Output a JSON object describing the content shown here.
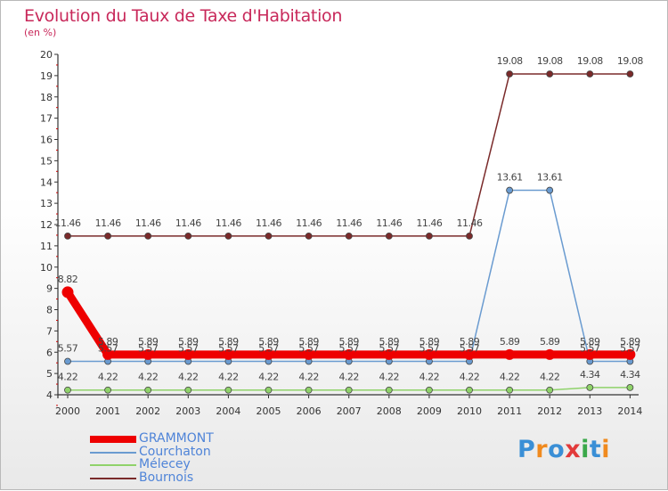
{
  "header": {
    "title": "Evolution du Taux de Taxe d'Habitation",
    "subtitle": "(en %)"
  },
  "logo": {
    "text": "Proxiti",
    "colors": [
      "#3a8fd6",
      "#f08a1e",
      "#3a8fd6",
      "#e23a3a",
      "#3aa84a",
      "#3a8fd6",
      "#f08a1e"
    ]
  },
  "chart_data": {
    "type": "line",
    "title": "Evolution du Taux de Taxe d'Habitation",
    "subtitle": "(en %)",
    "ylim": [
      4,
      20
    ],
    "yticks": [
      "4",
      "5",
      "6",
      "7",
      "8",
      "9",
      "10",
      "11",
      "12",
      "13",
      "14",
      "15",
      "16",
      "17",
      "18",
      "19",
      "20"
    ],
    "categories": [
      "2000",
      "2001",
      "2002",
      "2003",
      "2004",
      "2005",
      "2006",
      "2007",
      "2008",
      "2009",
      "2010",
      "2011",
      "2012",
      "2013",
      "2014"
    ],
    "grid": false,
    "legend_position": "bottom-left",
    "series": [
      {
        "name": "GRAMMONT",
        "color": "#ee0000",
        "values": [
          8.82,
          5.89,
          5.89,
          5.89,
          5.89,
          5.89,
          5.89,
          5.89,
          5.89,
          5.89,
          5.89,
          5.89,
          5.89,
          5.89,
          5.89
        ],
        "labels": [
          "8.82",
          "5.89",
          "5.89",
          "5.89",
          "5.89",
          "5.89",
          "5.89",
          "5.89",
          "5.89",
          "5.89",
          "5.89",
          "5.89",
          "5.89",
          "5.89",
          "5.89"
        ]
      },
      {
        "name": "Courchaton",
        "color": "#6a9bd0",
        "values": [
          5.57,
          5.57,
          5.57,
          5.57,
          5.57,
          5.57,
          5.57,
          5.57,
          5.57,
          5.57,
          5.57,
          13.61,
          13.61,
          5.57,
          5.57
        ],
        "labels": [
          "5.57",
          "5.57",
          "5.57",
          "5.57",
          "5.57",
          "5.57",
          "5.57",
          "5.57",
          "5.57",
          "5.57",
          "5.57",
          "13.61",
          "13.61",
          "5.57",
          "5.57"
        ]
      },
      {
        "name": "Mélecey",
        "color": "#8fd26a",
        "values": [
          4.22,
          4.22,
          4.22,
          4.22,
          4.22,
          4.22,
          4.22,
          4.22,
          4.22,
          4.22,
          4.22,
          4.22,
          4.22,
          4.34,
          4.34
        ],
        "labels": [
          "4.22",
          "4.22",
          "4.22",
          "4.22",
          "4.22",
          "4.22",
          "4.22",
          "4.22",
          "4.22",
          "4.22",
          "4.22",
          "4.22",
          "4.22",
          "4.34",
          "4.34"
        ]
      },
      {
        "name": "Bournois",
        "color": "#7a2a2a",
        "values": [
          11.46,
          11.46,
          11.46,
          11.46,
          11.46,
          11.46,
          11.46,
          11.46,
          11.46,
          11.46,
          11.46,
          19.08,
          19.08,
          19.08,
          19.08
        ],
        "labels": [
          "11.46",
          "11.46",
          "11.46",
          "11.46",
          "11.46",
          "11.46",
          "11.46",
          "11.46",
          "11.46",
          "11.46",
          "11.46",
          "19.08",
          "19.08",
          "19.08",
          "19.08"
        ]
      }
    ]
  }
}
